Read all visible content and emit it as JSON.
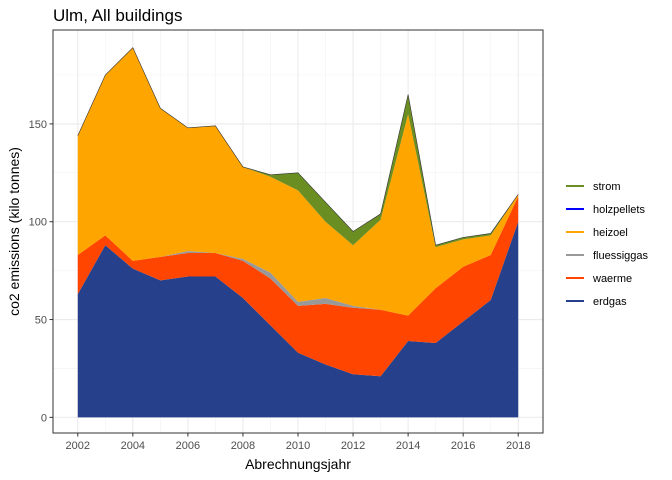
{
  "chart_data": {
    "type": "area",
    "stacked": true,
    "title": "Ulm, All buildings",
    "xlabel": "Abrechnungsjahr",
    "ylabel": "co2 emissions (kilo tonnes)",
    "xlim": [
      2001.1,
      2018.9
    ],
    "ylim": [
      -8,
      198
    ],
    "x": [
      2002,
      2003,
      2004,
      2005,
      2006,
      2007,
      2008,
      2009,
      2010,
      2011,
      2012,
      2013,
      2014,
      2015,
      2016,
      2017,
      2018
    ],
    "x_ticks": [
      2002,
      2004,
      2006,
      2008,
      2010,
      2012,
      2014,
      2016,
      2018
    ],
    "y_ticks": [
      0,
      50,
      100,
      150
    ],
    "grid": true,
    "legend_position": "right",
    "stack_order_bottom_to_top": [
      "erdgas",
      "waerme",
      "fluessiggas",
      "heizoel",
      "holzpellets",
      "strom"
    ],
    "series": [
      {
        "name": "strom",
        "color": "#6b8e23",
        "values": [
          0,
          0,
          0,
          0,
          0,
          0,
          0,
          1,
          9,
          10,
          7,
          3,
          10,
          1,
          1,
          1,
          0
        ]
      },
      {
        "name": "holzpellets",
        "color": "#0000ff",
        "values": [
          0,
          0,
          0,
          0,
          0,
          0,
          0,
          0,
          0,
          0,
          0,
          0,
          0,
          0,
          0,
          0,
          0
        ]
      },
      {
        "name": "heizoel",
        "color": "#ffa500",
        "values": [
          61,
          82,
          109,
          76,
          63,
          65,
          47,
          49,
          57,
          39,
          31,
          46,
          103,
          21,
          14,
          10,
          1
        ]
      },
      {
        "name": "fluessiggas",
        "color": "#999999",
        "values": [
          0,
          0,
          0,
          0,
          1,
          0,
          1,
          3,
          2,
          3,
          1,
          0,
          0,
          0,
          0,
          0,
          0
        ]
      },
      {
        "name": "waerme",
        "color": "#ff4500",
        "values": [
          20,
          5,
          4,
          12,
          12,
          12,
          19,
          24,
          24,
          31,
          34,
          34,
          13,
          28,
          28,
          23,
          13
        ]
      },
      {
        "name": "erdgas",
        "color": "#27408b",
        "values": [
          63,
          88,
          76,
          70,
          72,
          72,
          61,
          47,
          33,
          27,
          22,
          21,
          39,
          38,
          49,
          60,
          100
        ]
      }
    ]
  }
}
